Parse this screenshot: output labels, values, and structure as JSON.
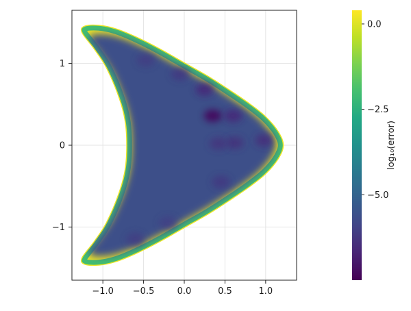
{
  "chart_data": {
    "type": "heatmap",
    "title": "",
    "xlabel": "",
    "ylabel": "",
    "xlim": [
      -1.38,
      1.38
    ],
    "ylim": [
      -1.65,
      1.65
    ],
    "xticks": [
      -1.0,
      -0.5,
      0.0,
      0.5,
      1.0
    ],
    "xtick_labels": [
      "−1.0",
      "−0.5",
      "0.0",
      "0.5",
      "1.0"
    ],
    "yticks": [
      -1,
      0,
      1
    ],
    "ytick_labels": [
      "−1",
      "0",
      "1"
    ],
    "grid": true,
    "colormap": "viridis",
    "domain_boundary": [
      [
        -1.22,
        1.45
      ],
      [
        -1.05,
        1.46
      ],
      [
        -0.85,
        1.42
      ],
      [
        -0.6,
        1.32
      ],
      [
        -0.3,
        1.17
      ],
      [
        0.0,
        1.0
      ],
      [
        0.3,
        0.83
      ],
      [
        0.55,
        0.67
      ],
      [
        0.8,
        0.5
      ],
      [
        1.0,
        0.34
      ],
      [
        1.15,
        0.16
      ],
      [
        1.21,
        0.0
      ],
      [
        1.15,
        -0.16
      ],
      [
        1.0,
        -0.34
      ],
      [
        0.8,
        -0.5
      ],
      [
        0.55,
        -0.67
      ],
      [
        0.3,
        -0.83
      ],
      [
        0.0,
        -1.0
      ],
      [
        -0.3,
        -1.17
      ],
      [
        -0.6,
        -1.32
      ],
      [
        -0.85,
        -1.42
      ],
      [
        -1.05,
        -1.46
      ],
      [
        -1.22,
        -1.45
      ],
      [
        -1.25,
        -1.38
      ],
      [
        -1.1,
        -1.18
      ],
      [
        -0.95,
        -0.95
      ],
      [
        -0.8,
        -0.6
      ],
      [
        -0.72,
        -0.3
      ],
      [
        -0.7,
        0.0
      ],
      [
        -0.72,
        0.3
      ],
      [
        -0.8,
        0.6
      ],
      [
        -0.95,
        0.95
      ],
      [
        -1.1,
        1.18
      ],
      [
        -1.25,
        1.38
      ]
    ],
    "interior_log10_error": -5.6,
    "boundary_log10_error": 0.2,
    "low_error_spots": [
      {
        "x": 0.35,
        "y": 0.36,
        "log10_error": -7.4
      },
      {
        "x": 0.6,
        "y": 0.36,
        "log10_error": -6.6
      },
      {
        "x": 0.25,
        "y": 0.68,
        "log10_error": -6.6
      },
      {
        "x": 0.98,
        "y": 0.06,
        "log10_error": -6.5
      },
      {
        "x": 0.62,
        "y": 0.03,
        "log10_error": -6.4
      },
      {
        "x": 0.42,
        "y": 0.02,
        "log10_error": -6.3
      },
      {
        "x": -0.05,
        "y": 0.87,
        "log10_error": -6.2
      },
      {
        "x": -0.47,
        "y": 1.04,
        "log10_error": -6.1
      },
      {
        "x": 0.45,
        "y": -0.45,
        "log10_error": -6.2
      },
      {
        "x": -0.6,
        "y": -1.15,
        "log10_error": -6.1
      },
      {
        "x": -0.2,
        "y": -0.95,
        "log10_error": -6.0
      }
    ],
    "colorbar": {
      "label": "log₁₀(error)",
      "range": [
        -7.5,
        0.4
      ],
      "ticks": [
        0.0,
        -2.5,
        -5.0
      ],
      "tick_labels": [
        "0.0",
        "−2.5",
        "−5.0"
      ]
    }
  }
}
